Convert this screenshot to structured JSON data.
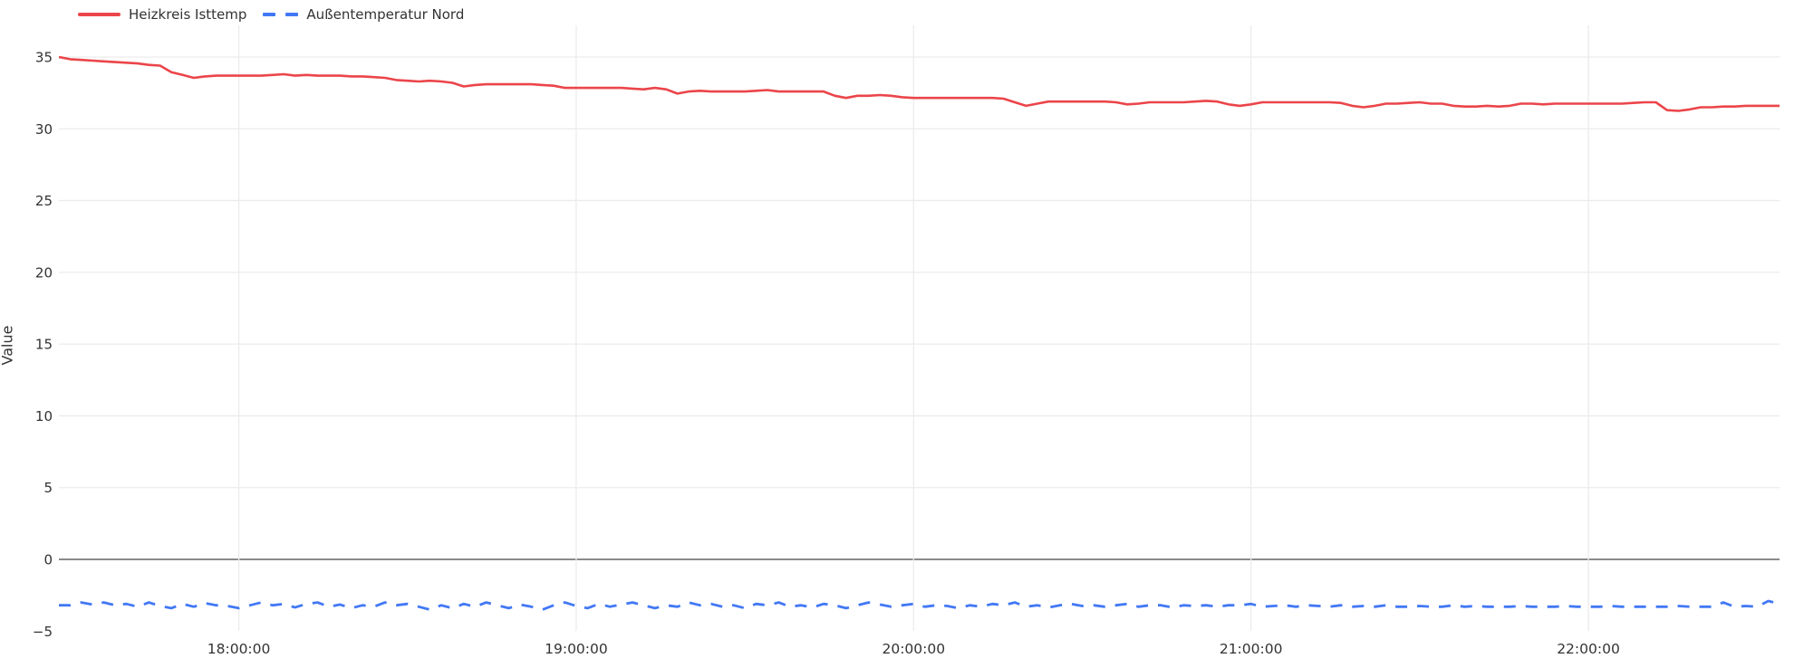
{
  "chart_data": {
    "type": "line",
    "title": "",
    "ylabel": "Value",
    "grid": true,
    "legend_position": "top-left",
    "background": "#ffffff",
    "ylim": [
      -5,
      37.6
    ],
    "y_tick_values": [
      -5,
      0,
      5,
      10,
      15,
      20,
      25,
      30,
      35
    ],
    "y_tick_labels": [
      "−5",
      "0",
      "5",
      "10",
      "15",
      "20",
      "25",
      "30",
      "35"
    ],
    "x_ticks": [
      "18:00:00",
      "19:00:00",
      "20:00:00",
      "21:00:00",
      "22:00:00"
    ],
    "x_tick_indices": [
      16,
      46,
      76,
      106,
      136
    ],
    "x_start": "17:28:00",
    "x_end": "22:34:00",
    "x_step_seconds": 120,
    "colors": {
      "grid": "#ececec",
      "zero_line": "#454545",
      "tick_text": "#333333",
      "red_series": "#eb454a",
      "blue_series": "#4278f5"
    },
    "series": [
      {
        "name": "Heizkreis Isttemp",
        "color": "#eb454a",
        "style": "solid",
        "values": [
          35.0,
          34.85,
          34.8,
          34.75,
          34.7,
          34.65,
          34.6,
          34.55,
          34.45,
          34.4,
          33.95,
          33.75,
          33.55,
          33.65,
          33.7,
          33.7,
          33.7,
          33.7,
          33.7,
          33.75,
          33.8,
          33.7,
          33.75,
          33.7,
          33.7,
          33.7,
          33.65,
          33.65,
          33.6,
          33.55,
          33.4,
          33.35,
          33.3,
          33.35,
          33.3,
          33.2,
          32.95,
          33.05,
          33.1,
          33.1,
          33.1,
          33.1,
          33.1,
          33.05,
          33.0,
          32.85,
          32.85,
          32.85,
          32.85,
          32.85,
          32.85,
          32.8,
          32.75,
          32.85,
          32.75,
          32.45,
          32.6,
          32.65,
          32.6,
          32.6,
          32.6,
          32.6,
          32.65,
          32.7,
          32.6,
          32.6,
          32.6,
          32.6,
          32.6,
          32.3,
          32.15,
          32.3,
          32.3,
          32.35,
          32.3,
          32.2,
          32.15,
          32.15,
          32.15,
          32.15,
          32.15,
          32.15,
          32.15,
          32.15,
          32.1,
          31.85,
          31.6,
          31.75,
          31.9,
          31.9,
          31.9,
          31.9,
          31.9,
          31.9,
          31.85,
          31.7,
          31.75,
          31.85,
          31.85,
          31.85,
          31.85,
          31.9,
          31.95,
          31.9,
          31.7,
          31.6,
          31.7,
          31.85,
          31.85,
          31.85,
          31.85,
          31.85,
          31.85,
          31.85,
          31.8,
          31.6,
          31.5,
          31.6,
          31.75,
          31.75,
          31.8,
          31.85,
          31.75,
          31.75,
          31.6,
          31.55,
          31.55,
          31.6,
          31.55,
          31.6,
          31.75,
          31.75,
          31.7,
          31.75,
          31.75,
          31.75,
          31.75,
          31.75,
          31.75,
          31.75,
          31.8,
          31.85,
          31.85,
          31.3,
          31.25,
          31.35,
          31.5,
          31.5,
          31.55,
          31.55,
          31.6,
          31.6,
          31.6,
          31.6
        ]
      },
      {
        "name": "Außentemperatur Nord",
        "color": "#4278f5",
        "style": "dashed",
        "values": [
          -3.2,
          -3.2,
          -3.0,
          -3.15,
          -3.0,
          -3.2,
          -3.1,
          -3.3,
          -3.0,
          -3.25,
          -3.4,
          -3.1,
          -3.3,
          -3.05,
          -3.2,
          -3.25,
          -3.4,
          -3.2,
          -3.0,
          -3.2,
          -3.1,
          -3.35,
          -3.1,
          -3.0,
          -3.3,
          -3.15,
          -3.4,
          -3.2,
          -3.3,
          -3.0,
          -3.2,
          -3.1,
          -3.3,
          -3.5,
          -3.2,
          -3.4,
          -3.1,
          -3.3,
          -3.0,
          -3.2,
          -3.4,
          -3.15,
          -3.3,
          -3.5,
          -3.2,
          -3.0,
          -3.25,
          -3.4,
          -3.1,
          -3.3,
          -3.15,
          -3.0,
          -3.2,
          -3.4,
          -3.2,
          -3.3,
          -3.0,
          -3.2,
          -3.1,
          -3.3,
          -3.2,
          -3.4,
          -3.1,
          -3.2,
          -3.0,
          -3.3,
          -3.2,
          -3.35,
          -3.1,
          -3.2,
          -3.4,
          -3.2,
          -3.0,
          -3.15,
          -3.3,
          -3.2,
          -3.1,
          -3.3,
          -3.2,
          -3.25,
          -3.4,
          -3.2,
          -3.3,
          -3.1,
          -3.2,
          -3.0,
          -3.3,
          -3.2,
          -3.35,
          -3.2,
          -3.1,
          -3.25,
          -3.2,
          -3.3,
          -3.2,
          -3.1,
          -3.3,
          -3.2,
          -3.2,
          -3.35,
          -3.2,
          -3.25,
          -3.2,
          -3.3,
          -3.2,
          -3.2,
          -3.1,
          -3.3,
          -3.25,
          -3.2,
          -3.3,
          -3.2,
          -3.25,
          -3.3,
          -3.2,
          -3.3,
          -3.25,
          -3.3,
          -3.2,
          -3.3,
          -3.3,
          -3.25,
          -3.3,
          -3.3,
          -3.2,
          -3.3,
          -3.25,
          -3.3,
          -3.3,
          -3.3,
          -3.25,
          -3.3,
          -3.3,
          -3.3,
          -3.25,
          -3.3,
          -3.3,
          -3.3,
          -3.25,
          -3.3,
          -3.3,
          -3.3,
          -3.3,
          -3.3,
          -3.25,
          -3.3,
          -3.3,
          -3.3,
          -3.0,
          -3.3,
          -3.25,
          -3.3,
          -2.9,
          -3.1
        ]
      }
    ]
  }
}
